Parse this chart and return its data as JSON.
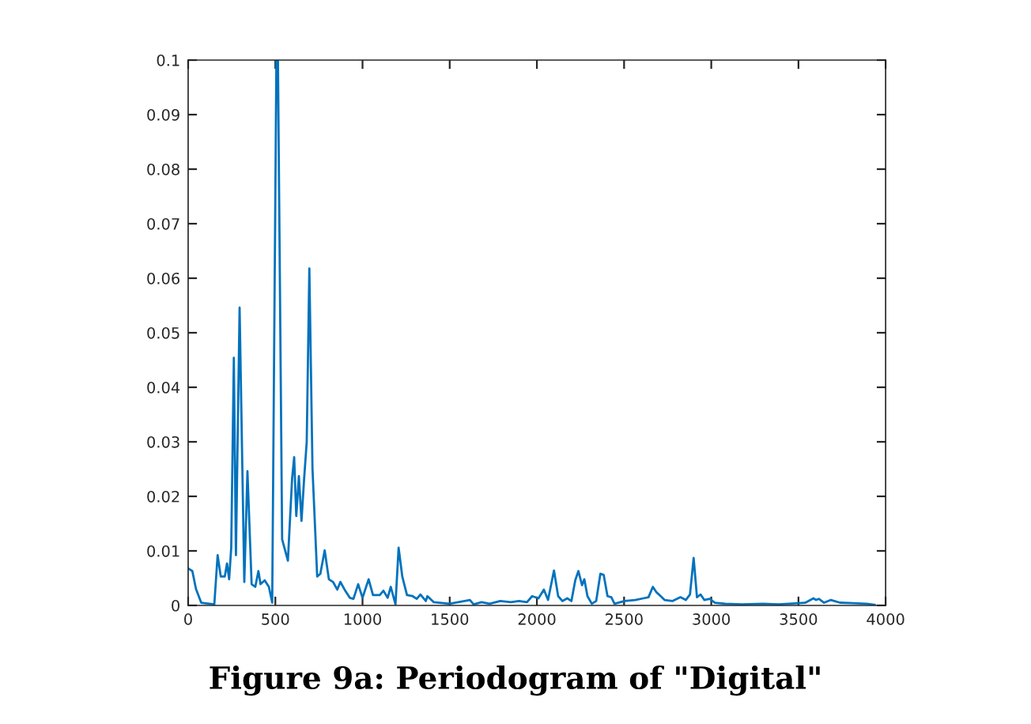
{
  "chart_data": {
    "type": "line",
    "title": "Figure 9a: Periodogram of \"Digital\"",
    "xlim": [
      0,
      4000
    ],
    "ylim": [
      0,
      0.1
    ],
    "xticks": [
      0,
      500,
      1000,
      1500,
      2000,
      2500,
      3000,
      3500,
      4000
    ],
    "yticks": [
      0,
      0.01,
      0.02,
      0.03,
      0.04,
      0.05,
      0.06,
      0.07,
      0.08,
      0.09,
      0.1
    ],
    "grid": false,
    "marker": "none",
    "line_style": "solid",
    "series": [
      {
        "color": "#0072bd",
        "x": [
          0,
          24,
          45,
          75,
          150,
          169,
          187,
          210,
          223,
          235,
          247,
          262,
          274,
          295,
          322,
          340,
          364,
          385,
          403,
          415,
          439,
          463,
          482,
          506,
          515,
          539,
          572,
          596,
          608,
          620,
          635,
          650,
          665,
          680,
          695,
          713,
          740,
          758,
          783,
          807,
          831,
          855,
          873,
          897,
          927,
          948,
          975,
          1000,
          1035,
          1060,
          1099,
          1120,
          1144,
          1162,
          1189,
          1207,
          1228,
          1255,
          1287,
          1311,
          1332,
          1363,
          1372,
          1408,
          1500,
          1616,
          1637,
          1683,
          1729,
          1790,
          1851,
          1897,
          1943,
          1973,
          2009,
          2040,
          2064,
          2098,
          2122,
          2146,
          2174,
          2198,
          2220,
          2238,
          2259,
          2272,
          2290,
          2315,
          2340,
          2364,
          2383,
          2405,
          2427,
          2445,
          2503,
          2564,
          2610,
          2640,
          2665,
          2686,
          2710,
          2732,
          2777,
          2823,
          2854,
          2878,
          2899,
          2918,
          2939,
          2960,
          2991,
          3021,
          3082,
          3174,
          3296,
          3387,
          3540,
          3586,
          3601,
          3617,
          3647,
          3686,
          3738,
          3814,
          3891,
          3937
        ],
        "values": [
          0.0068,
          0.0063,
          0.003,
          0.0005,
          0.0002,
          0.0092,
          0.0053,
          0.0053,
          0.0077,
          0.0048,
          0.0106,
          0.0454,
          0.0092,
          0.0546,
          0.0043,
          0.0246,
          0.0039,
          0.0034,
          0.0063,
          0.0039,
          0.0046,
          0.0034,
          0.0005,
          0.1,
          0.1,
          0.0121,
          0.0082,
          0.0232,
          0.0272,
          0.0164,
          0.0237,
          0.0155,
          0.0232,
          0.03,
          0.0618,
          0.0251,
          0.0053,
          0.0058,
          0.0101,
          0.0048,
          0.0043,
          0.0029,
          0.0043,
          0.0029,
          0.0014,
          0.0012,
          0.0039,
          0.0014,
          0.0048,
          0.0019,
          0.0019,
          0.0027,
          0.0014,
          0.0034,
          0.0002,
          0.0106,
          0.0053,
          0.0019,
          0.0017,
          0.0012,
          0.002,
          0.0008,
          0.0017,
          0.0006,
          0.0003,
          0.001,
          0.0002,
          0.0006,
          0.0003,
          0.0008,
          0.0006,
          0.0008,
          0.0006,
          0.0017,
          0.0013,
          0.0029,
          0.001,
          0.0064,
          0.0017,
          0.0008,
          0.0013,
          0.0008,
          0.0046,
          0.0063,
          0.0037,
          0.0048,
          0.0017,
          0.0003,
          0.0008,
          0.0058,
          0.0056,
          0.0017,
          0.0015,
          0.0003,
          0.0008,
          0.001,
          0.0013,
          0.0015,
          0.0034,
          0.0024,
          0.0017,
          0.001,
          0.0008,
          0.0015,
          0.001,
          0.002,
          0.0087,
          0.0015,
          0.002,
          0.001,
          0.0012,
          0.0005,
          0.0003,
          0.0002,
          0.0003,
          0.0002,
          0.0005,
          0.0013,
          0.001,
          0.0012,
          0.0005,
          0.001,
          0.0005,
          0.0004,
          0.0003,
          0.0001
        ]
      }
    ]
  }
}
